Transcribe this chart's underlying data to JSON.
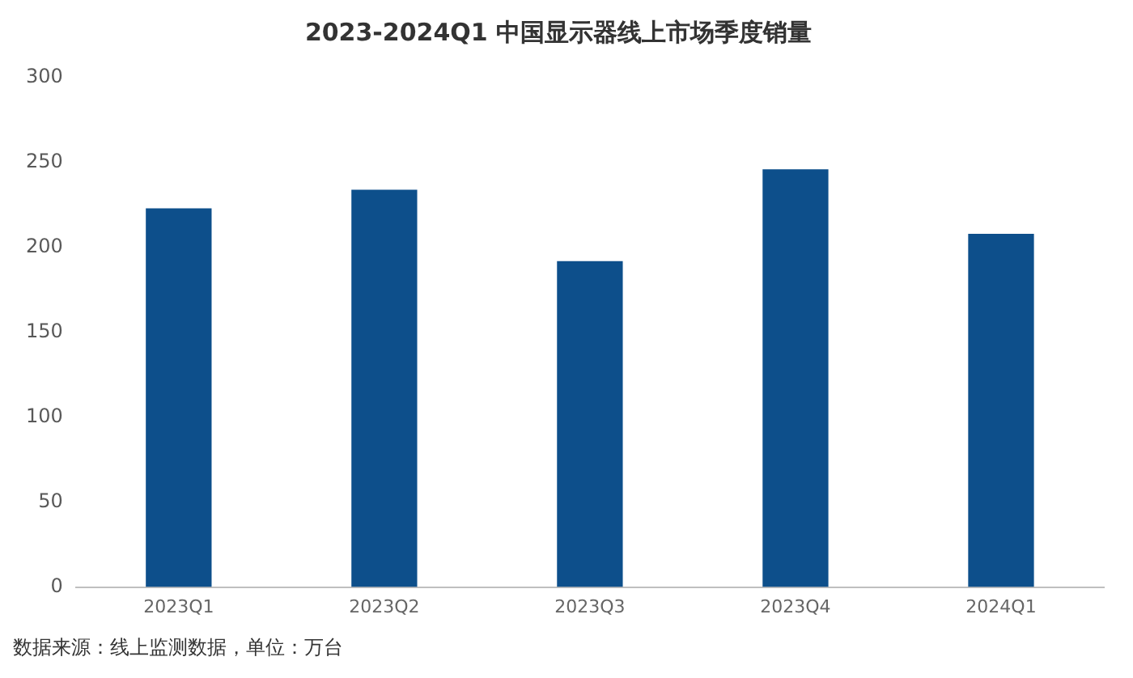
{
  "chart_data": {
    "type": "bar",
    "title": "2023-2024Q1 中国显示器线上市场季度销量",
    "categories": [
      "2023Q1",
      "2023Q2",
      "2023Q3",
      "2023Q4",
      "2024Q1"
    ],
    "values": [
      223,
      234,
      192,
      246,
      208
    ],
    "color": "#0d4f8b",
    "ylim": [
      0,
      300
    ],
    "yticks": [
      0,
      50,
      100,
      150,
      200,
      250,
      300
    ],
    "grid": false,
    "annotations": [
      "数据来源：线上监测数据，单位：万台"
    ]
  }
}
